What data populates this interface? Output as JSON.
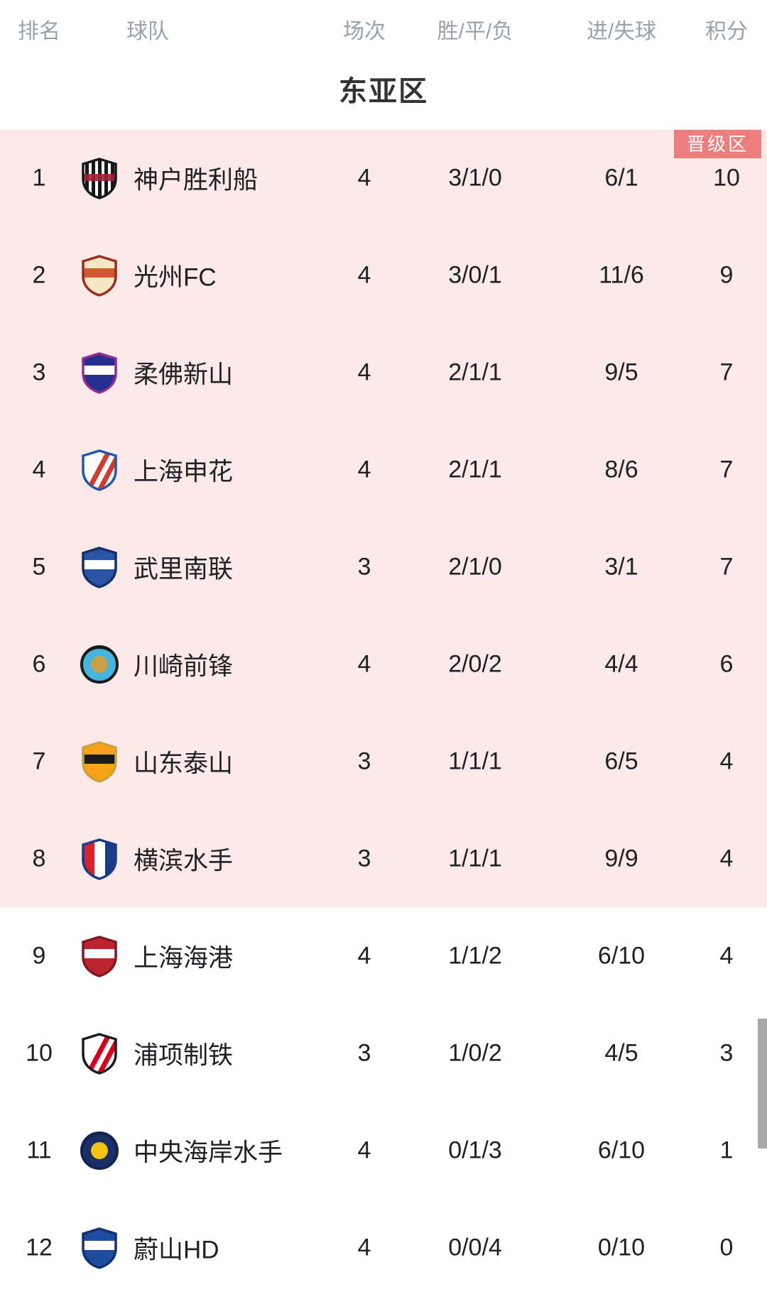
{
  "table": {
    "section_title": "东亚区",
    "qualification_badge": "晋级区",
    "columns": [
      "排名",
      "球队",
      "场次",
      "胜/平/负",
      "进/失球",
      "积分"
    ],
    "rows": [
      {
        "rank": "1",
        "team": "神户胜利船",
        "matches": "4",
        "wdl": "3/1/0",
        "goals": "6/1",
        "points": "10",
        "zone": "qualification",
        "logo": {
          "name": "vissel-kobe-crest",
          "shape": "shield",
          "pattern": "stripes",
          "primary": "#ffffff",
          "secondary": "#17171a",
          "accent": "#a51e36"
        }
      },
      {
        "rank": "2",
        "team": "光州FC",
        "matches": "4",
        "wdl": "3/0/1",
        "goals": "11/6",
        "points": "9",
        "zone": "qualification",
        "logo": {
          "name": "gwangju-fc-crest",
          "shape": "shield",
          "pattern": "band",
          "primary": "#f6e7c5",
          "secondary": "#9e2b21",
          "accent": "#cf5930"
        }
      },
      {
        "rank": "3",
        "team": "柔佛新山",
        "matches": "4",
        "wdl": "2/1/1",
        "goals": "9/5",
        "points": "7",
        "zone": "qualification",
        "logo": {
          "name": "johor-darul-tazim-crest",
          "shape": "shield",
          "pattern": "band",
          "primary": "#232e8f",
          "secondary": "#8f2e8f",
          "accent": "#ffffff"
        }
      },
      {
        "rank": "4",
        "team": "上海申花",
        "matches": "4",
        "wdl": "2/1/1",
        "goals": "8/6",
        "points": "7",
        "zone": "qualification",
        "logo": {
          "name": "shanghai-shenhua-crest",
          "shape": "shield",
          "pattern": "diagonal",
          "primary": "#ffffff",
          "secondary": "#2457a7",
          "accent": "#d33a30"
        }
      },
      {
        "rank": "5",
        "team": "武里南联",
        "matches": "3",
        "wdl": "2/1/0",
        "goals": "3/1",
        "points": "7",
        "zone": "qualification",
        "logo": {
          "name": "buriram-united-crest",
          "shape": "shield",
          "pattern": "band",
          "primary": "#2a55a5",
          "secondary": "#142f66",
          "accent": "#ffffff"
        }
      },
      {
        "rank": "6",
        "team": "川崎前锋",
        "matches": "4",
        "wdl": "2/0/2",
        "goals": "4/4",
        "points": "6",
        "zone": "qualification",
        "logo": {
          "name": "kawasaki-frontale-crest",
          "shape": "circle",
          "pattern": "dot",
          "primary": "#45b5e0",
          "secondary": "#1a1a1a",
          "accent": "#c8a04a"
        }
      },
      {
        "rank": "7",
        "team": "山东泰山",
        "matches": "3",
        "wdl": "1/1/1",
        "goals": "6/5",
        "points": "4",
        "zone": "qualification",
        "logo": {
          "name": "shandong-taishan-crest",
          "shape": "shield",
          "pattern": "band",
          "primary": "#f8a21a",
          "secondary": "#caa33c",
          "accent": "#1a1a1a"
        }
      },
      {
        "rank": "8",
        "team": "横滨水手",
        "matches": "3",
        "wdl": "1/1/1",
        "goals": "9/9",
        "points": "4",
        "zone": "qualification",
        "logo": {
          "name": "yokohama-marinos-crest",
          "shape": "shield",
          "pattern": "tricolor",
          "primary": "#ffffff",
          "secondary": "#1d3a85",
          "accent": "#d8232a"
        }
      },
      {
        "rank": "9",
        "team": "上海海港",
        "matches": "4",
        "wdl": "1/1/2",
        "goals": "6/10",
        "points": "4",
        "zone": "standard",
        "logo": {
          "name": "shanghai-port-crest",
          "shape": "shield",
          "pattern": "band",
          "primary": "#bc2430",
          "secondary": "#801722",
          "accent": "#ffffff"
        }
      },
      {
        "rank": "10",
        "team": "浦项制铁",
        "matches": "3",
        "wdl": "1/0/2",
        "goals": "4/5",
        "points": "3",
        "zone": "standard",
        "logo": {
          "name": "pohang-steelers-crest",
          "shape": "shield",
          "pattern": "diagonal",
          "primary": "#ffffff",
          "secondary": "#1b1b1f",
          "accent": "#d6001c"
        }
      },
      {
        "rank": "11",
        "team": "中央海岸水手",
        "matches": "4",
        "wdl": "0/1/3",
        "goals": "6/10",
        "points": "1",
        "zone": "standard",
        "logo": {
          "name": "central-coast-mariners-crest",
          "shape": "circle",
          "pattern": "dot",
          "primary": "#1b2f66",
          "secondary": "#13234d",
          "accent": "#f2c40f"
        }
      },
      {
        "rank": "12",
        "team": "蔚山HD",
        "matches": "4",
        "wdl": "0/0/4",
        "goals": "0/10",
        "points": "0",
        "zone": "standard",
        "logo": {
          "name": "ulsan-hd-crest",
          "shape": "shield",
          "pattern": "band",
          "primary": "#1e4ca1",
          "secondary": "#12326e",
          "accent": "#ffffff"
        }
      }
    ]
  },
  "colors": {
    "qualification_zone_bg": "#fce9e9",
    "qualification_badge_bg": "#ee7e7e",
    "header_text": "#9aa1a9",
    "title_text": "#333333",
    "row_text": "#202124",
    "scrollbar": "#a9a9a9"
  }
}
